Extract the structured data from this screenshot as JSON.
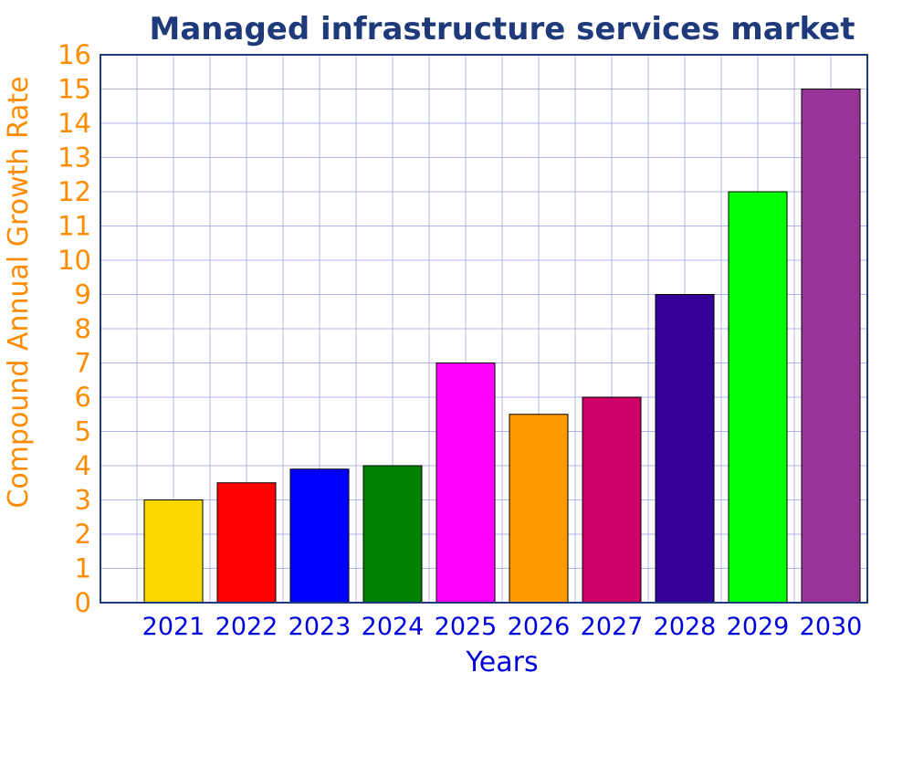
{
  "chart_data": {
    "type": "bar",
    "title": "Managed infrastructure services market",
    "xlabel": "Years",
    "ylabel": "Compound Annual Growth Rate",
    "categories": [
      "2021",
      "2022",
      "2023",
      "2024",
      "2025",
      "2026",
      "2027",
      "2028",
      "2029",
      "2030"
    ],
    "values": [
      3,
      3.5,
      3.9,
      4,
      7,
      5.5,
      6,
      9,
      12,
      15
    ],
    "bar_colors": [
      "#ffd700",
      "#ff0000",
      "#0000ff",
      "#008000",
      "#ff00ff",
      "#ff9900",
      "#cc0066",
      "#330099",
      "#00ff00",
      "#993399"
    ],
    "ylim": [
      0,
      16
    ],
    "yticks": [
      "0",
      "1",
      "2",
      "3",
      "4",
      "5",
      "6",
      "7",
      "8",
      "9",
      "10",
      "11",
      "12",
      "13",
      "14",
      "15",
      "16"
    ],
    "grid": true,
    "legend": "none"
  },
  "colors": {
    "title": "#1f3a7a",
    "ytick": "#ff8c00",
    "ylabel": "#ff8c00",
    "xtick": "#0000dd",
    "xlabel": "#0000dd",
    "grid": "#b0b4ee",
    "frame": "#1f3a7a",
    "bar_border": "#000000"
  }
}
